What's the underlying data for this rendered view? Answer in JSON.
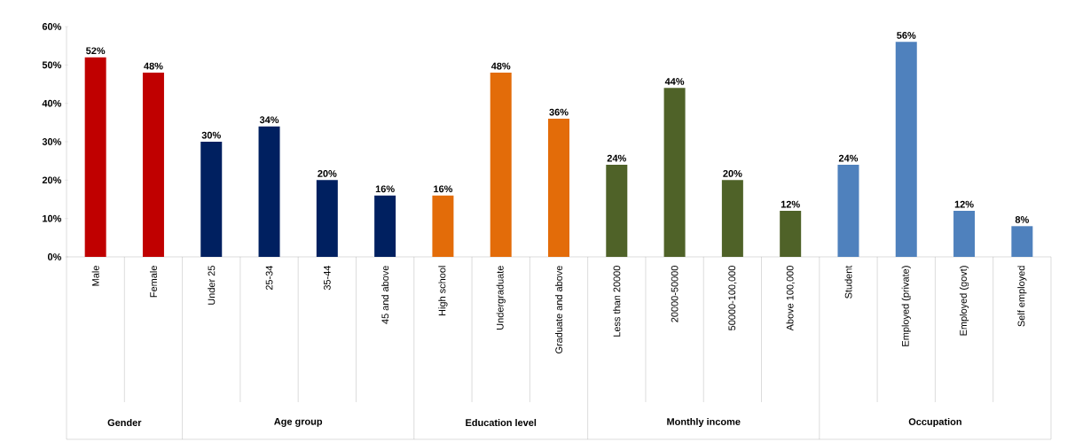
{
  "chart_data": {
    "type": "bar",
    "categories": [
      "Male",
      "Female",
      "Under 25",
      "25-34",
      "35-44",
      "45 and above",
      "High school",
      "Undergraduate",
      "Graduate and above",
      "Less than 20000",
      "20000-50000",
      "50000-100,000",
      "Above 100,000",
      "Student",
      "Employed (private)",
      "Employed (govt)",
      "Self employed"
    ],
    "values": [
      52,
      48,
      30,
      34,
      20,
      16,
      16,
      48,
      36,
      24,
      44,
      20,
      12,
      24,
      56,
      12,
      8
    ],
    "value_labels": [
      "52%",
      "48%",
      "30%",
      "34%",
      "20%",
      "16%",
      "16%",
      "48%",
      "36%",
      "24%",
      "44%",
      "20%",
      "12%",
      "24%",
      "56%",
      "12%",
      "8%"
    ],
    "colors": [
      "#c00000",
      "#c00000",
      "#002060",
      "#002060",
      "#002060",
      "#002060",
      "#e36c09",
      "#e36c09",
      "#e36c09",
      "#4f6228",
      "#4f6228",
      "#4f6228",
      "#4f6228",
      "#4f81bd",
      "#4f81bd",
      "#4f81bd",
      "#4f81bd"
    ],
    "annotations": [
      "Gender",
      "Age group",
      "Education level",
      "Monthly income",
      "Occupation"
    ],
    "ylim": [
      0,
      60
    ],
    "yticks": [
      {
        "value": 0,
        "label": "0%"
      },
      {
        "value": 10,
        "label": "10%"
      },
      {
        "value": 20,
        "label": "20%"
      },
      {
        "value": 30,
        "label": "30%"
      },
      {
        "value": 40,
        "label": "40%"
      },
      {
        "value": 50,
        "label": "50%"
      },
      {
        "value": 60,
        "label": "60%"
      }
    ],
    "grid": false
  }
}
